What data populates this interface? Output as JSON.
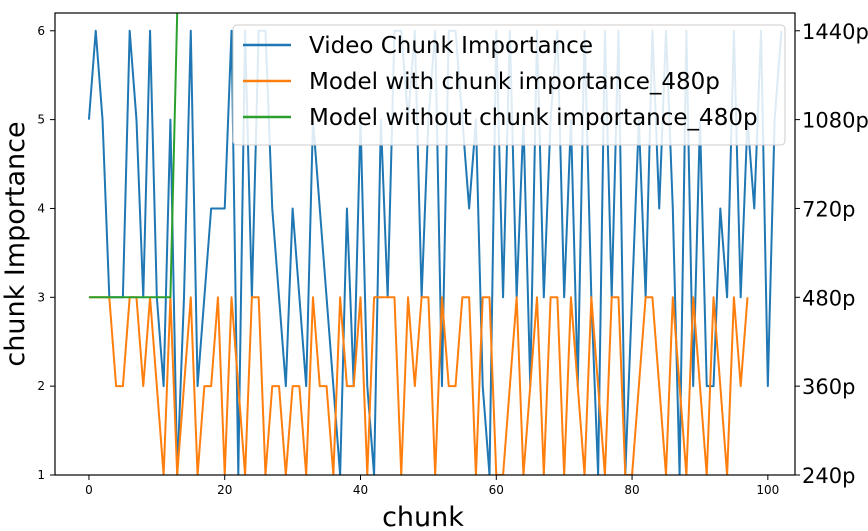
{
  "chart_data": {
    "type": "line",
    "title": "",
    "xlabel": "chunk",
    "ylabel": "chunk Importance",
    "xlim": [
      -5,
      104
    ],
    "ylim": [
      1,
      6.2
    ],
    "x_ticks": [
      0,
      20,
      40,
      60,
      80,
      100
    ],
    "y_ticks_left": [
      1,
      2,
      3,
      4,
      5,
      6
    ],
    "y_ticks_right": [
      {
        "value": 1,
        "label": "240p"
      },
      {
        "value": 2,
        "label": "360p"
      },
      {
        "value": 3,
        "label": "480p"
      },
      {
        "value": 4,
        "label": "720p"
      },
      {
        "value": 5,
        "label": "1080p"
      },
      {
        "value": 6,
        "label": "1440p"
      }
    ],
    "grid": false,
    "legend_position": "top-right",
    "series": [
      {
        "name": "Video Chunk Importance",
        "color": "#1f77b4",
        "axis": "left",
        "x_start": 0,
        "values": [
          5,
          6,
          5,
          3,
          3,
          3,
          6,
          5,
          3,
          6,
          3,
          2,
          5,
          1,
          3,
          6,
          2,
          3,
          4,
          4,
          4,
          6,
          1,
          6,
          3,
          6,
          6,
          4,
          3,
          2,
          4,
          3,
          2,
          5,
          4,
          3,
          2,
          1,
          4,
          2,
          5,
          2,
          1,
          5,
          3,
          6,
          6,
          5,
          6,
          3,
          5,
          6,
          2,
          6,
          6,
          5,
          4,
          5,
          2,
          1,
          6,
          3,
          6,
          3,
          5,
          2,
          6,
          3,
          5,
          6,
          3,
          5,
          2,
          6,
          3,
          1,
          6,
          3,
          6,
          1,
          3,
          5,
          3,
          6,
          4,
          6,
          4,
          1,
          6,
          2,
          5,
          2,
          2,
          4,
          3,
          6,
          3,
          5,
          4,
          6,
          2,
          5,
          6
        ]
      },
      {
        "name": "Model with chunk importance_480p",
        "color": "#ff7f0e",
        "axis": "left",
        "x_start": 0,
        "values": [
          3,
          3,
          3,
          3,
          2,
          2,
          3,
          3,
          2,
          3,
          2,
          1,
          3,
          1,
          2,
          3,
          1,
          2,
          2,
          3,
          1,
          3,
          2,
          1,
          3,
          3,
          1,
          2,
          2,
          1,
          2,
          2,
          1,
          3,
          2,
          2,
          1,
          3,
          2,
          2,
          3,
          1,
          3,
          3,
          3,
          3,
          1,
          3,
          2,
          3,
          3,
          1,
          3,
          2,
          2,
          3,
          3,
          1,
          3,
          3,
          1,
          1,
          2,
          3,
          1,
          2,
          3,
          1,
          3,
          3,
          1,
          3,
          2,
          1,
          3,
          2,
          1,
          3,
          3,
          1,
          1,
          2,
          3,
          3,
          2,
          1,
          3,
          2,
          1,
          3,
          2,
          1,
          3,
          2,
          1,
          3,
          2,
          3
        ]
      },
      {
        "name": "Model without chunk importance_480p",
        "color": "#2ca02c",
        "axis": "left",
        "x_start": 0,
        "values": [
          3,
          3,
          3,
          3,
          3,
          3,
          3,
          3,
          3,
          3,
          3,
          3,
          3,
          6.2
        ]
      }
    ]
  }
}
